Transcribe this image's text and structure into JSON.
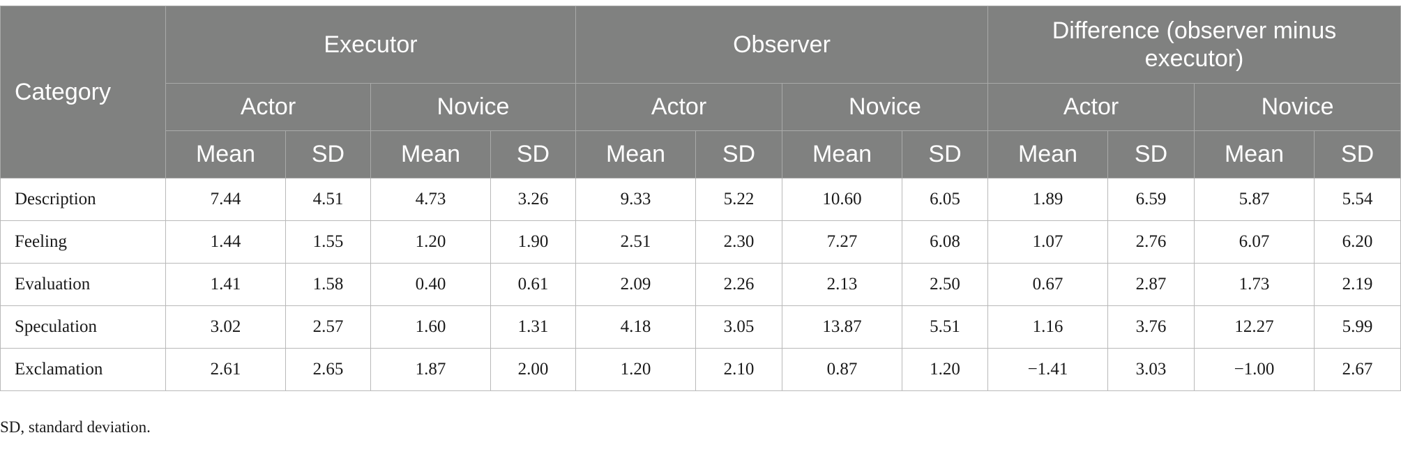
{
  "table": {
    "category_header": "Category",
    "groups": [
      "Executor",
      "Observer",
      "Difference (observer minus executor)"
    ],
    "subgroups": [
      "Actor",
      "Novice",
      "Actor",
      "Novice",
      "Actor",
      "Novice"
    ],
    "stats": [
      "Mean",
      "SD",
      "Mean",
      "SD",
      "Mean",
      "SD",
      "Mean",
      "SD",
      "Mean",
      "SD",
      "Mean",
      "SD"
    ],
    "rows": [
      {
        "category": "Description",
        "values": [
          "7.44",
          "4.51",
          "4.73",
          "3.26",
          "9.33",
          "5.22",
          "10.60",
          "6.05",
          "1.89",
          "6.59",
          "5.87",
          "5.54"
        ]
      },
      {
        "category": "Feeling",
        "values": [
          "1.44",
          "1.55",
          "1.20",
          "1.90",
          "2.51",
          "2.30",
          "7.27",
          "6.08",
          "1.07",
          "2.76",
          "6.07",
          "6.20"
        ]
      },
      {
        "category": "Evaluation",
        "values": [
          "1.41",
          "1.58",
          "0.40",
          "0.61",
          "2.09",
          "2.26",
          "2.13",
          "2.50",
          "0.67",
          "2.87",
          "1.73",
          "2.19"
        ]
      },
      {
        "category": "Speculation",
        "values": [
          "3.02",
          "2.57",
          "1.60",
          "1.31",
          "4.18",
          "3.05",
          "13.87",
          "5.51",
          "1.16",
          "3.76",
          "12.27",
          "5.99"
        ]
      },
      {
        "category": "Exclamation",
        "values": [
          "2.61",
          "2.65",
          "1.87",
          "2.00",
          "1.20",
          "2.10",
          "0.87",
          "1.20",
          "−1.41",
          "3.03",
          "−1.00",
          "2.67"
        ]
      }
    ]
  },
  "footnote": "SD, standard deviation."
}
